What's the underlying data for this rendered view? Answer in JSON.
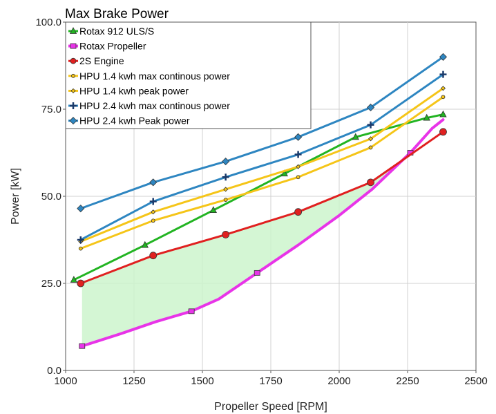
{
  "chart_data": {
    "type": "line",
    "title": "Max Brake Power",
    "xlabel": "Propeller Speed [RPM]",
    "ylabel": "Power [kW]",
    "xlim": [
      1000,
      2500
    ],
    "ylim": [
      0,
      100
    ],
    "x_ticks": [
      "1000",
      "1250",
      "1500",
      "1750",
      "2000",
      "2250",
      "2500"
    ],
    "y_ticks": [
      "0.0",
      "25.0",
      "50.0",
      "75.0",
      "100.0"
    ],
    "grid": true,
    "legend_position": "top-left",
    "shaded_region": {
      "between": [
        "2S Engine",
        "Rotax Propeller"
      ],
      "color": "#ccf5cc"
    },
    "series": [
      {
        "name": "Rotax 912 ULS/S",
        "color": "#22b422",
        "marker": "triangle",
        "points": [
          [
            1030,
            26
          ],
          [
            1290,
            36
          ],
          [
            1540,
            46
          ],
          [
            1800,
            56.5
          ],
          [
            2060,
            67
          ],
          [
            2320,
            72.5
          ],
          [
            2380,
            73.5
          ]
        ]
      },
      {
        "name": "Rotax Propeller",
        "color": "#e834e8",
        "marker": "square",
        "points": [
          [
            1060,
            7
          ],
          [
            1200,
            10.5
          ],
          [
            1330,
            14
          ],
          [
            1460,
            17
          ],
          [
            1560,
            20.5
          ],
          [
            1700,
            28
          ],
          [
            1850,
            36
          ],
          [
            2000,
            44.5
          ],
          [
            2120,
            52
          ],
          [
            2260,
            62.5
          ],
          [
            2340,
            69.5
          ],
          [
            2380,
            72
          ]
        ]
      },
      {
        "name": "2S Engine",
        "color": "#e02020",
        "marker": "circle",
        "points": [
          [
            1055,
            25
          ],
          [
            1320,
            33
          ],
          [
            1585,
            39
          ],
          [
            1850,
            45.5
          ],
          [
            2115,
            54
          ],
          [
            2380,
            68.5
          ]
        ]
      },
      {
        "name": "HPU 1.4 kwh max continous power",
        "color": "#f5c518",
        "marker": "small-circle",
        "points": [
          [
            1055,
            35
          ],
          [
            1320,
            43
          ],
          [
            1585,
            49
          ],
          [
            1850,
            55.5
          ],
          [
            2115,
            64
          ],
          [
            2380,
            78.5
          ]
        ]
      },
      {
        "name": "HPU 1.4 kwh peak power",
        "color": "#f5c518",
        "marker": "small-diamond",
        "points": [
          [
            1055,
            37
          ],
          [
            1320,
            45.5
          ],
          [
            1585,
            52
          ],
          [
            1850,
            58.5
          ],
          [
            2115,
            66.5
          ],
          [
            2380,
            81
          ]
        ]
      },
      {
        "name": "HPU 2.4 kwh max continous power",
        "color": "#2e86c1",
        "marker": "plus",
        "points": [
          [
            1055,
            37.5
          ],
          [
            1320,
            48.5
          ],
          [
            1585,
            55.5
          ],
          [
            1850,
            62
          ],
          [
            2115,
            70.5
          ],
          [
            2380,
            85
          ]
        ]
      },
      {
        "name": "HPU 2.4 kwh Peak power",
        "color": "#2e86c1",
        "marker": "diamond",
        "points": [
          [
            1055,
            46.5
          ],
          [
            1320,
            54
          ],
          [
            1585,
            60
          ],
          [
            1850,
            67
          ],
          [
            2115,
            75.5
          ],
          [
            2380,
            90
          ]
        ]
      }
    ]
  }
}
